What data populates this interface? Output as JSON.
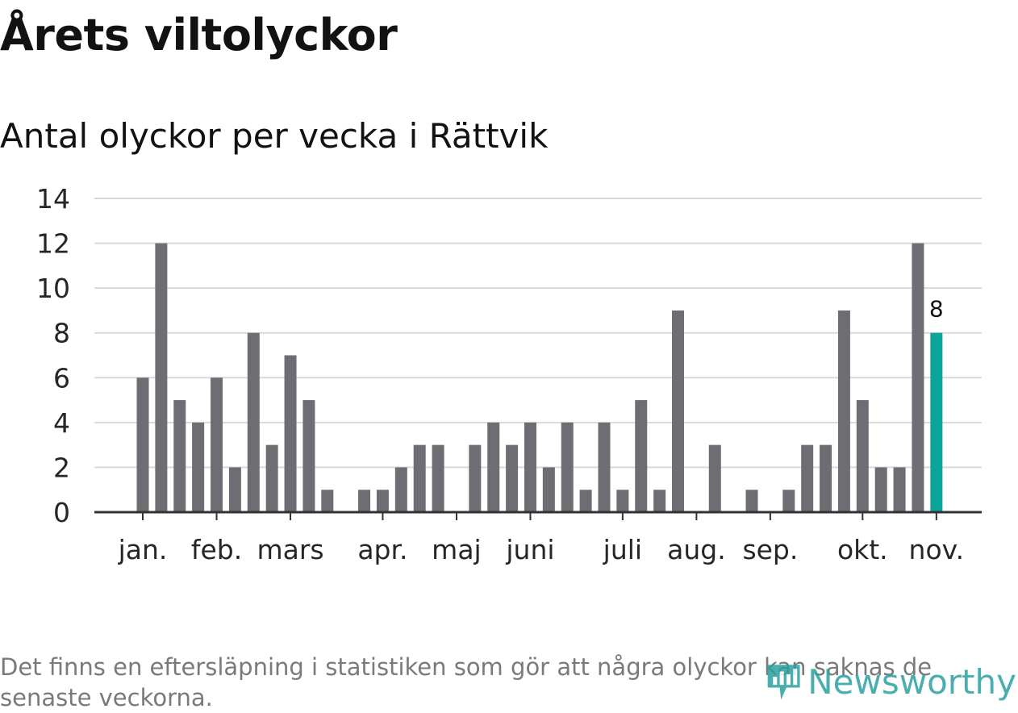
{
  "title": "Årets viltolyckor",
  "subtitle": "Antal olyckor per vecka i Rättvik",
  "footnote": "Det finns en eftersläpning i statistiken som gör att några olyckor kan saknas de senaste veckorna.",
  "logo_text": "Newsworthy",
  "colors": {
    "bar": "#6e6d73",
    "highlight": "#0ba49b",
    "grid": "#d9d9d9",
    "axis": "#333333",
    "brand": "#2aa1a0"
  },
  "chart_data": {
    "type": "bar",
    "title": "Antal olyckor per vecka i Rättvik",
    "ylim": [
      0,
      14
    ],
    "y_ticks": [
      0,
      2,
      4,
      6,
      8,
      10,
      12,
      14
    ],
    "grid": true,
    "month_labels": [
      {
        "label": "jan.",
        "week": 1
      },
      {
        "label": "feb.",
        "week": 5
      },
      {
        "label": "mars",
        "week": 9
      },
      {
        "label": "apr.",
        "week": 14
      },
      {
        "label": "maj",
        "week": 18
      },
      {
        "label": "juni",
        "week": 22
      },
      {
        "label": "juli",
        "week": 27
      },
      {
        "label": "aug.",
        "week": 31
      },
      {
        "label": "sep.",
        "week": 35
      },
      {
        "label": "okt.",
        "week": 40
      },
      {
        "label": "nov.",
        "week": 44
      }
    ],
    "weeks": [
      1,
      2,
      3,
      4,
      5,
      6,
      7,
      8,
      9,
      10,
      11,
      12,
      13,
      14,
      15,
      16,
      17,
      18,
      19,
      20,
      21,
      22,
      23,
      24,
      25,
      26,
      27,
      28,
      29,
      30,
      31,
      32,
      33,
      34,
      35,
      36,
      37,
      38,
      39,
      40,
      41,
      42,
      43,
      44
    ],
    "values": [
      6,
      12,
      5,
      4,
      6,
      2,
      8,
      3,
      7,
      5,
      1,
      0,
      1,
      1,
      2,
      3,
      3,
      0,
      3,
      4,
      3,
      4,
      2,
      4,
      1,
      4,
      1,
      5,
      1,
      9,
      0,
      3,
      0,
      1,
      0,
      1,
      3,
      3,
      9,
      5,
      2,
      2,
      12,
      8
    ],
    "highlight_week": 44,
    "highlight_label": "8"
  }
}
